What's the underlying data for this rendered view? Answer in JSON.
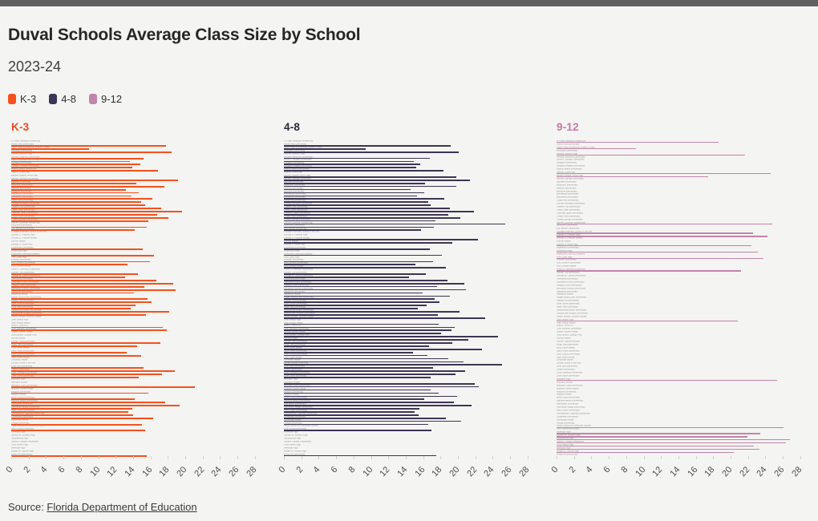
{
  "page": {
    "title": "Duval Schools Average Class Size by School",
    "subtitle": "2023-24",
    "source_prefix": "Source: ",
    "source_link": "Florida Department of Education"
  },
  "colors": {
    "background": "#f4f4f2",
    "top_strip": "#606060",
    "k3": "#f4511e",
    "g48": "#3d3554",
    "g912": "#c184ab",
    "k3_title": "#ed4b1e",
    "g48_title": "#2c2840",
    "g912_title": "#c976a4"
  },
  "legend": {
    "items": [
      {
        "id": "k3",
        "label": "K-3",
        "color": "#f4511e"
      },
      {
        "id": "g48",
        "label": "4-8",
        "color": "#3d3554"
      },
      {
        "id": "g912",
        "label": "9-12",
        "color": "#c184ab"
      }
    ]
  },
  "chart_data": {
    "type": "bar",
    "layout": "small-multiples-horizontal-bars",
    "title": "Duval Schools Average Class Size by School",
    "subtitle": "2023-24",
    "grid": false,
    "x_axis": {
      "min": 0,
      "max": 28,
      "tick_step": 2,
      "ticks": [
        0,
        2,
        4,
        6,
        8,
        10,
        12,
        14,
        16,
        18,
        20,
        22,
        24,
        26,
        28
      ]
    },
    "panels": [
      {
        "id": "k3",
        "title": "K-3",
        "value_key": "k3",
        "color": "#f4511e",
        "title_color": "#ed4b1e",
        "css": "panel-k3"
      },
      {
        "id": "g48",
        "title": "4-8",
        "value_key": "g48",
        "color": "#3d3554",
        "title_color": "#2c2840",
        "css": "panel-g48"
      },
      {
        "id": "g912",
        "title": "9-12",
        "value_key": "g912",
        "color": "#c184ab",
        "title_color": "#c976a4",
        "css": "panel-g912"
      }
    ],
    "schools": [
      {
        "name": "A. Philip Randolph Academies",
        "k3": null,
        "g48": null,
        "g912": 18.6
      },
      {
        "name": "Abess Park Elementary",
        "k3": 17.8,
        "g48": 19.2,
        "g912": null
      },
      {
        "name": "Alden Road Exceptional Student Center",
        "k3": 8.9,
        "g48": 9.4,
        "g912": 9.1
      },
      {
        "name": "Alimacani Elementary",
        "k3": 18.4,
        "g48": 20.1,
        "g912": null
      },
      {
        "name": "Andrew Jackson High",
        "k3": null,
        "g48": null,
        "g912": 21.7
      },
      {
        "name": "Andrew Robinson Elementary",
        "k3": 15.2,
        "g48": 16.8,
        "g912": null
      },
      {
        "name": "Annie R. Morgan Elementary",
        "k3": 13.6,
        "g48": 14.9,
        "g912": null
      },
      {
        "name": "Arlington Elementary",
        "k3": 14.8,
        "g48": 15.7,
        "g912": null
      },
      {
        "name": "Arlington Heights Elementary",
        "k3": 13.9,
        "g48": 15.2,
        "g912": null
      },
      {
        "name": "Atlantic Beach Elementary",
        "k3": 16.9,
        "g48": 18.3,
        "g912": null
      },
      {
        "name": "Atlantic Coast High",
        "k3": null,
        "g48": null,
        "g912": 24.6
      },
      {
        "name": "Baldwin Middle-Senior High",
        "k3": null,
        "g48": 19.8,
        "g912": 17.4
      },
      {
        "name": "Bartram Springs Elementary",
        "k3": 19.2,
        "g48": 21.4,
        "g912": null
      },
      {
        "name": "Bayview Elementary",
        "k3": 14.4,
        "g48": 16.2,
        "g912": null
      },
      {
        "name": "Beauclerc Elementary",
        "k3": 17.6,
        "g48": 19.8,
        "g912": null
      },
      {
        "name": "Biltmore Elementary",
        "k3": 13.2,
        "g48": 14.6,
        "g912": null
      },
      {
        "name": "Biscayne Elementary",
        "k3": 14.7,
        "g48": 16.1,
        "g912": null
      },
      {
        "name": "Brentwood Elementary",
        "k3": 13.8,
        "g48": 15.3,
        "g912": null
      },
      {
        "name": "Brookview Elementary",
        "k3": 16.2,
        "g48": 18.4,
        "g912": null
      },
      {
        "name": "Cedar Hills Elementary",
        "k3": 14.9,
        "g48": 16.6,
        "g912": null
      },
      {
        "name": "Central Riverside Elementary",
        "k3": 15.4,
        "g48": 16.9,
        "g912": null
      },
      {
        "name": "Chaffee Trail Elementary",
        "k3": 17.2,
        "g48": 19.1,
        "g912": null
      },
      {
        "name": "Chets Creek Elementary",
        "k3": 19.6,
        "g48": 21.8,
        "g912": null
      },
      {
        "name": "Chimney Lakes Elementary",
        "k3": 16.8,
        "g48": 18.9,
        "g912": null
      },
      {
        "name": "Crown Point Elementary",
        "k3": 18.1,
        "g48": 20.3,
        "g912": null
      },
      {
        "name": "Crystal Springs Elementary",
        "k3": 15.8,
        "g48": 17.4,
        "g912": null
      },
      {
        "name": "Darnell-Cookman Middle/High",
        "k3": null,
        "g48": 25.4,
        "g912": 24.8
      },
      {
        "name": "Dinsmore Elementary",
        "k3": 15.6,
        "g48": 17.2,
        "g912": null
      },
      {
        "name": "Don Brewer Elementary",
        "k3": 14.2,
        "g48": 15.8,
        "g912": null
      },
      {
        "name": "Douglas Anderson School of the Arts",
        "k3": null,
        "g48": null,
        "g912": 22.6
      },
      {
        "name": "Duncan U. Fletcher High",
        "k3": null,
        "g48": null,
        "g912": 24.2
      },
      {
        "name": "Duncan U. Fletcher Middle",
        "k3": null,
        "g48": 22.3,
        "g912": null
      },
      {
        "name": "DuPont Middle",
        "k3": null,
        "g48": 19.4,
        "g912": null
      },
      {
        "name": "Edward H. White High",
        "k3": null,
        "g48": null,
        "g912": 22.4
      },
      {
        "name": "Englewood Elementary",
        "k3": 15.1,
        "g48": 16.8,
        "g912": null
      },
      {
        "name": "Englewood High",
        "k3": null,
        "g48": null,
        "g912": 23.1
      },
      {
        "name": "Enterprise Learning Academy",
        "k3": 16.4,
        "g48": 18.2,
        "g912": null
      },
      {
        "name": "First Coast High",
        "k3": null,
        "g48": null,
        "g912": 23.8
      },
      {
        "name": "Fishweir Elementary",
        "k3": 15.9,
        "g48": 17.1,
        "g912": null
      },
      {
        "name": "Fort Caroline Elementary",
        "k3": 13.4,
        "g48": 15.1,
        "g912": null
      },
      {
        "name": "Fort Caroline Middle",
        "k3": null,
        "g48": 18.6,
        "g912": null
      },
      {
        "name": "Frank H. Peterson Academies",
        "k3": null,
        "g48": null,
        "g912": 21.2
      },
      {
        "name": "Garden City Elementary",
        "k3": 14.6,
        "g48": 16.3,
        "g912": null
      },
      {
        "name": "George W. Carver Elementary",
        "k3": 13.1,
        "g48": 14.4,
        "g912": null
      },
      {
        "name": "Greenfield Elementary",
        "k3": 16.7,
        "g48": 18.8,
        "g912": null
      },
      {
        "name": "Greenland Pines Elementary",
        "k3": 18.6,
        "g48": 20.7,
        "g912": null
      },
      {
        "name": "Gregory Drive Elementary",
        "k3": 15.3,
        "g48": 17.6,
        "g912": null
      },
      {
        "name": "Hendricks Avenue Elementary",
        "k3": 18.9,
        "g48": 20.9,
        "g912": null
      },
      {
        "name": "Highlands Elementary",
        "k3": 14.1,
        "g48": 15.9,
        "g912": null
      },
      {
        "name": "Highlands Middle",
        "k3": null,
        "g48": 19.1,
        "g912": null
      },
      {
        "name": "Hogan-Spring Glen Elementary",
        "k3": 15.7,
        "g48": 17.3,
        "g912": null
      },
      {
        "name": "Holiday Hill Elementary",
        "k3": 16.1,
        "g48": 17.9,
        "g912": null
      },
      {
        "name": "Hyde Grove Elementary",
        "k3": 14.3,
        "g48": 16.4,
        "g912": null
      },
      {
        "name": "Hyde Park Elementary",
        "k3": 13.7,
        "g48": 15.4,
        "g912": null
      },
      {
        "name": "Jacksonville Beach Elementary",
        "k3": 18.2,
        "g48": 20.2,
        "g912": null
      },
      {
        "name": "Jacksonville Heights Elementary",
        "k3": 15.5,
        "g48": 17.7,
        "g912": null
      },
      {
        "name": "James Weldon Johnson Middle",
        "k3": null,
        "g48": 23.1,
        "g912": null
      },
      {
        "name": "Jean Ribault High",
        "k3": null,
        "g48": null,
        "g912": 20.8
      },
      {
        "name": "Jean Ribault Middle",
        "k3": null,
        "g48": 17.8,
        "g912": null
      },
      {
        "name": "John E. Ford K-8",
        "k3": 17.4,
        "g48": 19.6,
        "g912": null
      },
      {
        "name": "John Stockton Elementary",
        "k3": 17.9,
        "g48": 19.3,
        "g912": null
      },
      {
        "name": "Joseph Stilwell Middle",
        "k3": null,
        "g48": 18.1,
        "g912": null
      },
      {
        "name": "Julia Landon College Prep",
        "k3": null,
        "g48": 24.6,
        "g912": null
      },
      {
        "name": "Kernan Middle",
        "k3": null,
        "g48": 21.2,
        "g912": null
      },
      {
        "name": "Kernan Trail Elementary",
        "k3": 17.1,
        "g48": 19.4,
        "g912": null
      },
      {
        "name": "Kings Trail Elementary",
        "k3": 14.5,
        "g48": 16.7,
        "g912": null
      },
      {
        "name": "Kirby-Smith Middle",
        "k3": null,
        "g48": 22.8,
        "g912": null
      },
      {
        "name": "Lake Forest Elementary",
        "k3": 13.3,
        "g48": 14.8,
        "g912": null
      },
      {
        "name": "Lake Lucina Elementary",
        "k3": 14.9,
        "g48": 16.5,
        "g912": null
      },
      {
        "name": "Lake Shore Middle",
        "k3": null,
        "g48": 18.9,
        "g912": null
      },
      {
        "name": "Landmark Middle",
        "k3": null,
        "g48": 20.6,
        "g912": null
      },
      {
        "name": "LaVilla School of the Arts",
        "k3": null,
        "g48": 25.1,
        "g912": null
      },
      {
        "name": "Lone Star Elementary",
        "k3": 15.2,
        "g48": 17.1,
        "g912": null
      },
      {
        "name": "Loretto Elementary",
        "k3": 18.8,
        "g48": 20.8,
        "g912": null
      },
      {
        "name": "Louis Sheffield Elementary",
        "k3": 17.3,
        "g48": 19.7,
        "g912": null
      },
      {
        "name": "Love Grove Elementary",
        "k3": 14.7,
        "g48": 16.9,
        "g912": null
      },
      {
        "name": "Mandarin High",
        "k3": null,
        "g48": null,
        "g912": 25.3
      },
      {
        "name": "Mandarin Middle",
        "k3": null,
        "g48": 21.9,
        "g912": null
      },
      {
        "name": "Mandarin Oaks Elementary",
        "k3": 21.1,
        "g48": 22.4,
        "g912": null
      },
      {
        "name": "Matthew Gilbert Middle",
        "k3": null,
        "g48": 16.9,
        "g912": null
      },
      {
        "name": "Mayport Elementary",
        "k3": 15.8,
        "g48": 17.8,
        "g912": null
      },
      {
        "name": "Mayport Middle",
        "k3": null,
        "g48": 19.9,
        "g912": null
      },
      {
        "name": "Merrill Road Elementary",
        "k3": 14.2,
        "g48": 16.1,
        "g912": null
      },
      {
        "name": "Neptune Beach Elementary",
        "k3": 17.7,
        "g48": 19.5,
        "g912": null
      },
      {
        "name": "New Berlin Elementary",
        "k3": 19.4,
        "g48": 21.6,
        "g912": null
      },
      {
        "name": "Normandy Village Elementary",
        "k3": 13.9,
        "g48": 15.6,
        "g912": null
      },
      {
        "name": "North Shore Elementary",
        "k3": 13.5,
        "g48": 15.0,
        "g912": null
      },
      {
        "name": "Northwestern Legends Elementary",
        "k3": 14.0,
        "g48": 15.5,
        "g912": null
      },
      {
        "name": "Oceanway Elementary",
        "k3": 16.3,
        "g48": 18.6,
        "g912": null
      },
      {
        "name": "Oceanway Middle",
        "k3": null,
        "g48": 20.4,
        "g912": null
      },
      {
        "name": "Ortega Elementary",
        "k3": 15.0,
        "g48": 16.6,
        "g912": null
      },
      {
        "name": "Paxon School for Advanced Studies",
        "k3": null,
        "g48": null,
        "g912": 26.1
      },
      {
        "name": "Pine Forest Elementary",
        "k3": 15.4,
        "g48": 17.0,
        "g912": null
      },
      {
        "name": "Riverside High",
        "k3": null,
        "g48": null,
        "g912": 23.4
      },
      {
        "name": "Samuel W. Wolfson High",
        "k3": null,
        "g48": null,
        "g912": 21.9
      },
      {
        "name": "Sandalwood High",
        "k3": null,
        "g48": null,
        "g912": 26.8
      },
      {
        "name": "Stanton College Preparatory",
        "k3": null,
        "g48": null,
        "g912": 26.4
      },
      {
        "name": "Terry Parker High",
        "k3": null,
        "g48": null,
        "g912": 22.7
      },
      {
        "name": "Westside High",
        "k3": null,
        "g48": null,
        "g912": 23.3
      },
      {
        "name": "William M. Raines High",
        "k3": null,
        "g48": null,
        "g912": 20.4
      },
      {
        "name": "Windy Hill Elementary",
        "k3": 15.6,
        "g48": 17.5,
        "g912": null
      }
    ]
  }
}
